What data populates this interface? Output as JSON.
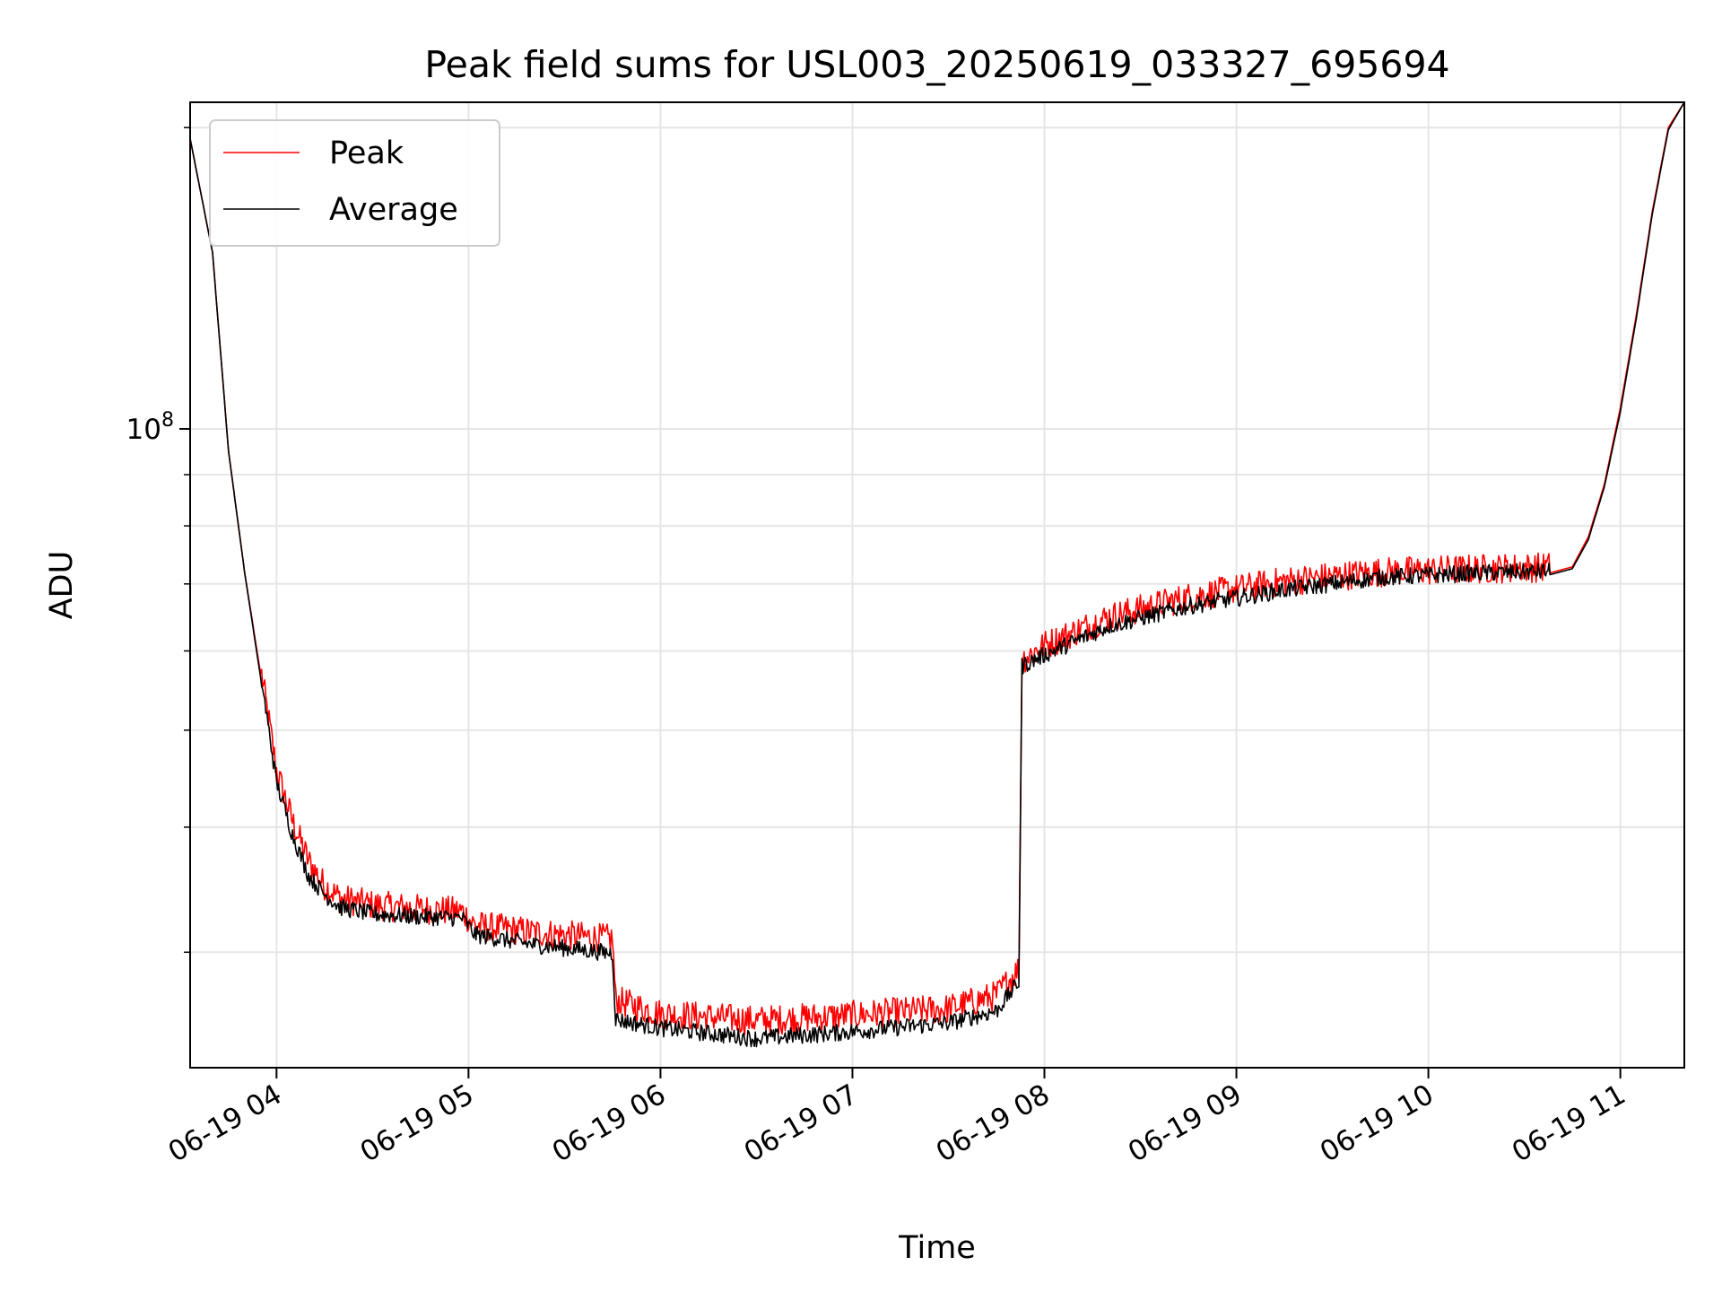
{
  "chart_data": {
    "type": "line",
    "title": "Peak field sums for USL003_20250619_033327_695694",
    "xlabel": "Time",
    "ylabel": "ADU",
    "x_scale": "time",
    "y_scale": "log",
    "xlim": [
      "06-19 03:33",
      "06-19 11:20"
    ],
    "ylim": [
      23000000,
      212000000
    ],
    "x_ticks": [
      "06-19 04",
      "06-19 05",
      "06-19 06",
      "06-19 07",
      "06-19 08",
      "06-19 09",
      "06-19 10",
      "06-19 11"
    ],
    "x_tick_hours": [
      4,
      5,
      6,
      7,
      8,
      9,
      10,
      11
    ],
    "y_major_ticks": [
      {
        "value": 100000000,
        "base": "10",
        "exponent": "8"
      }
    ],
    "y_minor_ticks": [
      30000000,
      40000000,
      50000000,
      60000000,
      70000000,
      80000000,
      90000000,
      200000000
    ],
    "grid": true,
    "legend": {
      "position": "top-left"
    },
    "series": [
      {
        "name": "Peak",
        "color": "#ff0000",
        "noise": 0.035,
        "points": [
          [
            "03:33",
            195000000
          ],
          [
            "03:40",
            150000000
          ],
          [
            "03:45",
            95000000
          ],
          [
            "03:50",
            72000000
          ],
          [
            "03:55",
            57000000
          ],
          [
            "04:00",
            45000000
          ],
          [
            "04:05",
            40000000
          ],
          [
            "04:10",
            36500000
          ],
          [
            "04:15",
            34500000
          ],
          [
            "04:20",
            33500000
          ],
          [
            "04:30",
            33000000
          ],
          [
            "04:45",
            32700000
          ],
          [
            "04:58",
            32500000
          ],
          [
            "05:02",
            31500000
          ],
          [
            "05:20",
            31000000
          ],
          [
            "05:45",
            30500000
          ],
          [
            "05:46",
            26500000
          ],
          [
            "06:00",
            25700000
          ],
          [
            "06:30",
            25300000
          ],
          [
            "07:00",
            25600000
          ],
          [
            "07:30",
            26000000
          ],
          [
            "07:45",
            26800000
          ],
          [
            "07:52",
            28500000
          ],
          [
            "07:53",
            58000000
          ],
          [
            "08:00",
            60000000
          ],
          [
            "08:20",
            64000000
          ],
          [
            "08:45",
            67000000
          ],
          [
            "09:15",
            69500000
          ],
          [
            "09:45",
            71000000
          ],
          [
            "10:15",
            71500000
          ],
          [
            "10:38",
            71800000
          ],
          [
            "10:45",
            72800000
          ],
          [
            "10:50",
            78000000
          ],
          [
            "10:55",
            88000000
          ],
          [
            "11:00",
            105000000
          ],
          [
            "11:05",
            130000000
          ],
          [
            "11:10",
            165000000
          ],
          [
            "11:15",
            200000000
          ],
          [
            "11:20",
            212000000
          ]
        ]
      },
      {
        "name": "Average",
        "color": "#000000",
        "noise": 0.02,
        "points": [
          [
            "03:33",
            195000000
          ],
          [
            "03:40",
            150000000
          ],
          [
            "03:45",
            95000000
          ],
          [
            "03:50",
            72000000
          ],
          [
            "03:55",
            56500000
          ],
          [
            "04:00",
            44000000
          ],
          [
            "04:05",
            39000000
          ],
          [
            "04:10",
            35500000
          ],
          [
            "04:15",
            34000000
          ],
          [
            "04:20",
            33000000
          ],
          [
            "04:30",
            32500000
          ],
          [
            "04:45",
            32300000
          ],
          [
            "04:58",
            32200000
          ],
          [
            "05:02",
            31000000
          ],
          [
            "05:20",
            30300000
          ],
          [
            "05:45",
            29700000
          ],
          [
            "05:46",
            25500000
          ],
          [
            "06:00",
            25000000
          ],
          [
            "06:30",
            24400000
          ],
          [
            "07:00",
            24800000
          ],
          [
            "07:30",
            25300000
          ],
          [
            "07:45",
            26000000
          ],
          [
            "07:52",
            27800000
          ],
          [
            "07:53",
            57500000
          ],
          [
            "08:00",
            59000000
          ],
          [
            "08:20",
            63000000
          ],
          [
            "08:45",
            66000000
          ],
          [
            "09:15",
            68500000
          ],
          [
            "09:45",
            70500000
          ],
          [
            "10:15",
            71200000
          ],
          [
            "10:38",
            71500000
          ],
          [
            "10:45",
            72500000
          ],
          [
            "10:50",
            77500000
          ],
          [
            "10:55",
            87500000
          ],
          [
            "11:00",
            104000000
          ],
          [
            "11:05",
            129000000
          ],
          [
            "11:10",
            164000000
          ],
          [
            "11:15",
            199000000
          ],
          [
            "11:20",
            212000000
          ]
        ]
      }
    ]
  }
}
